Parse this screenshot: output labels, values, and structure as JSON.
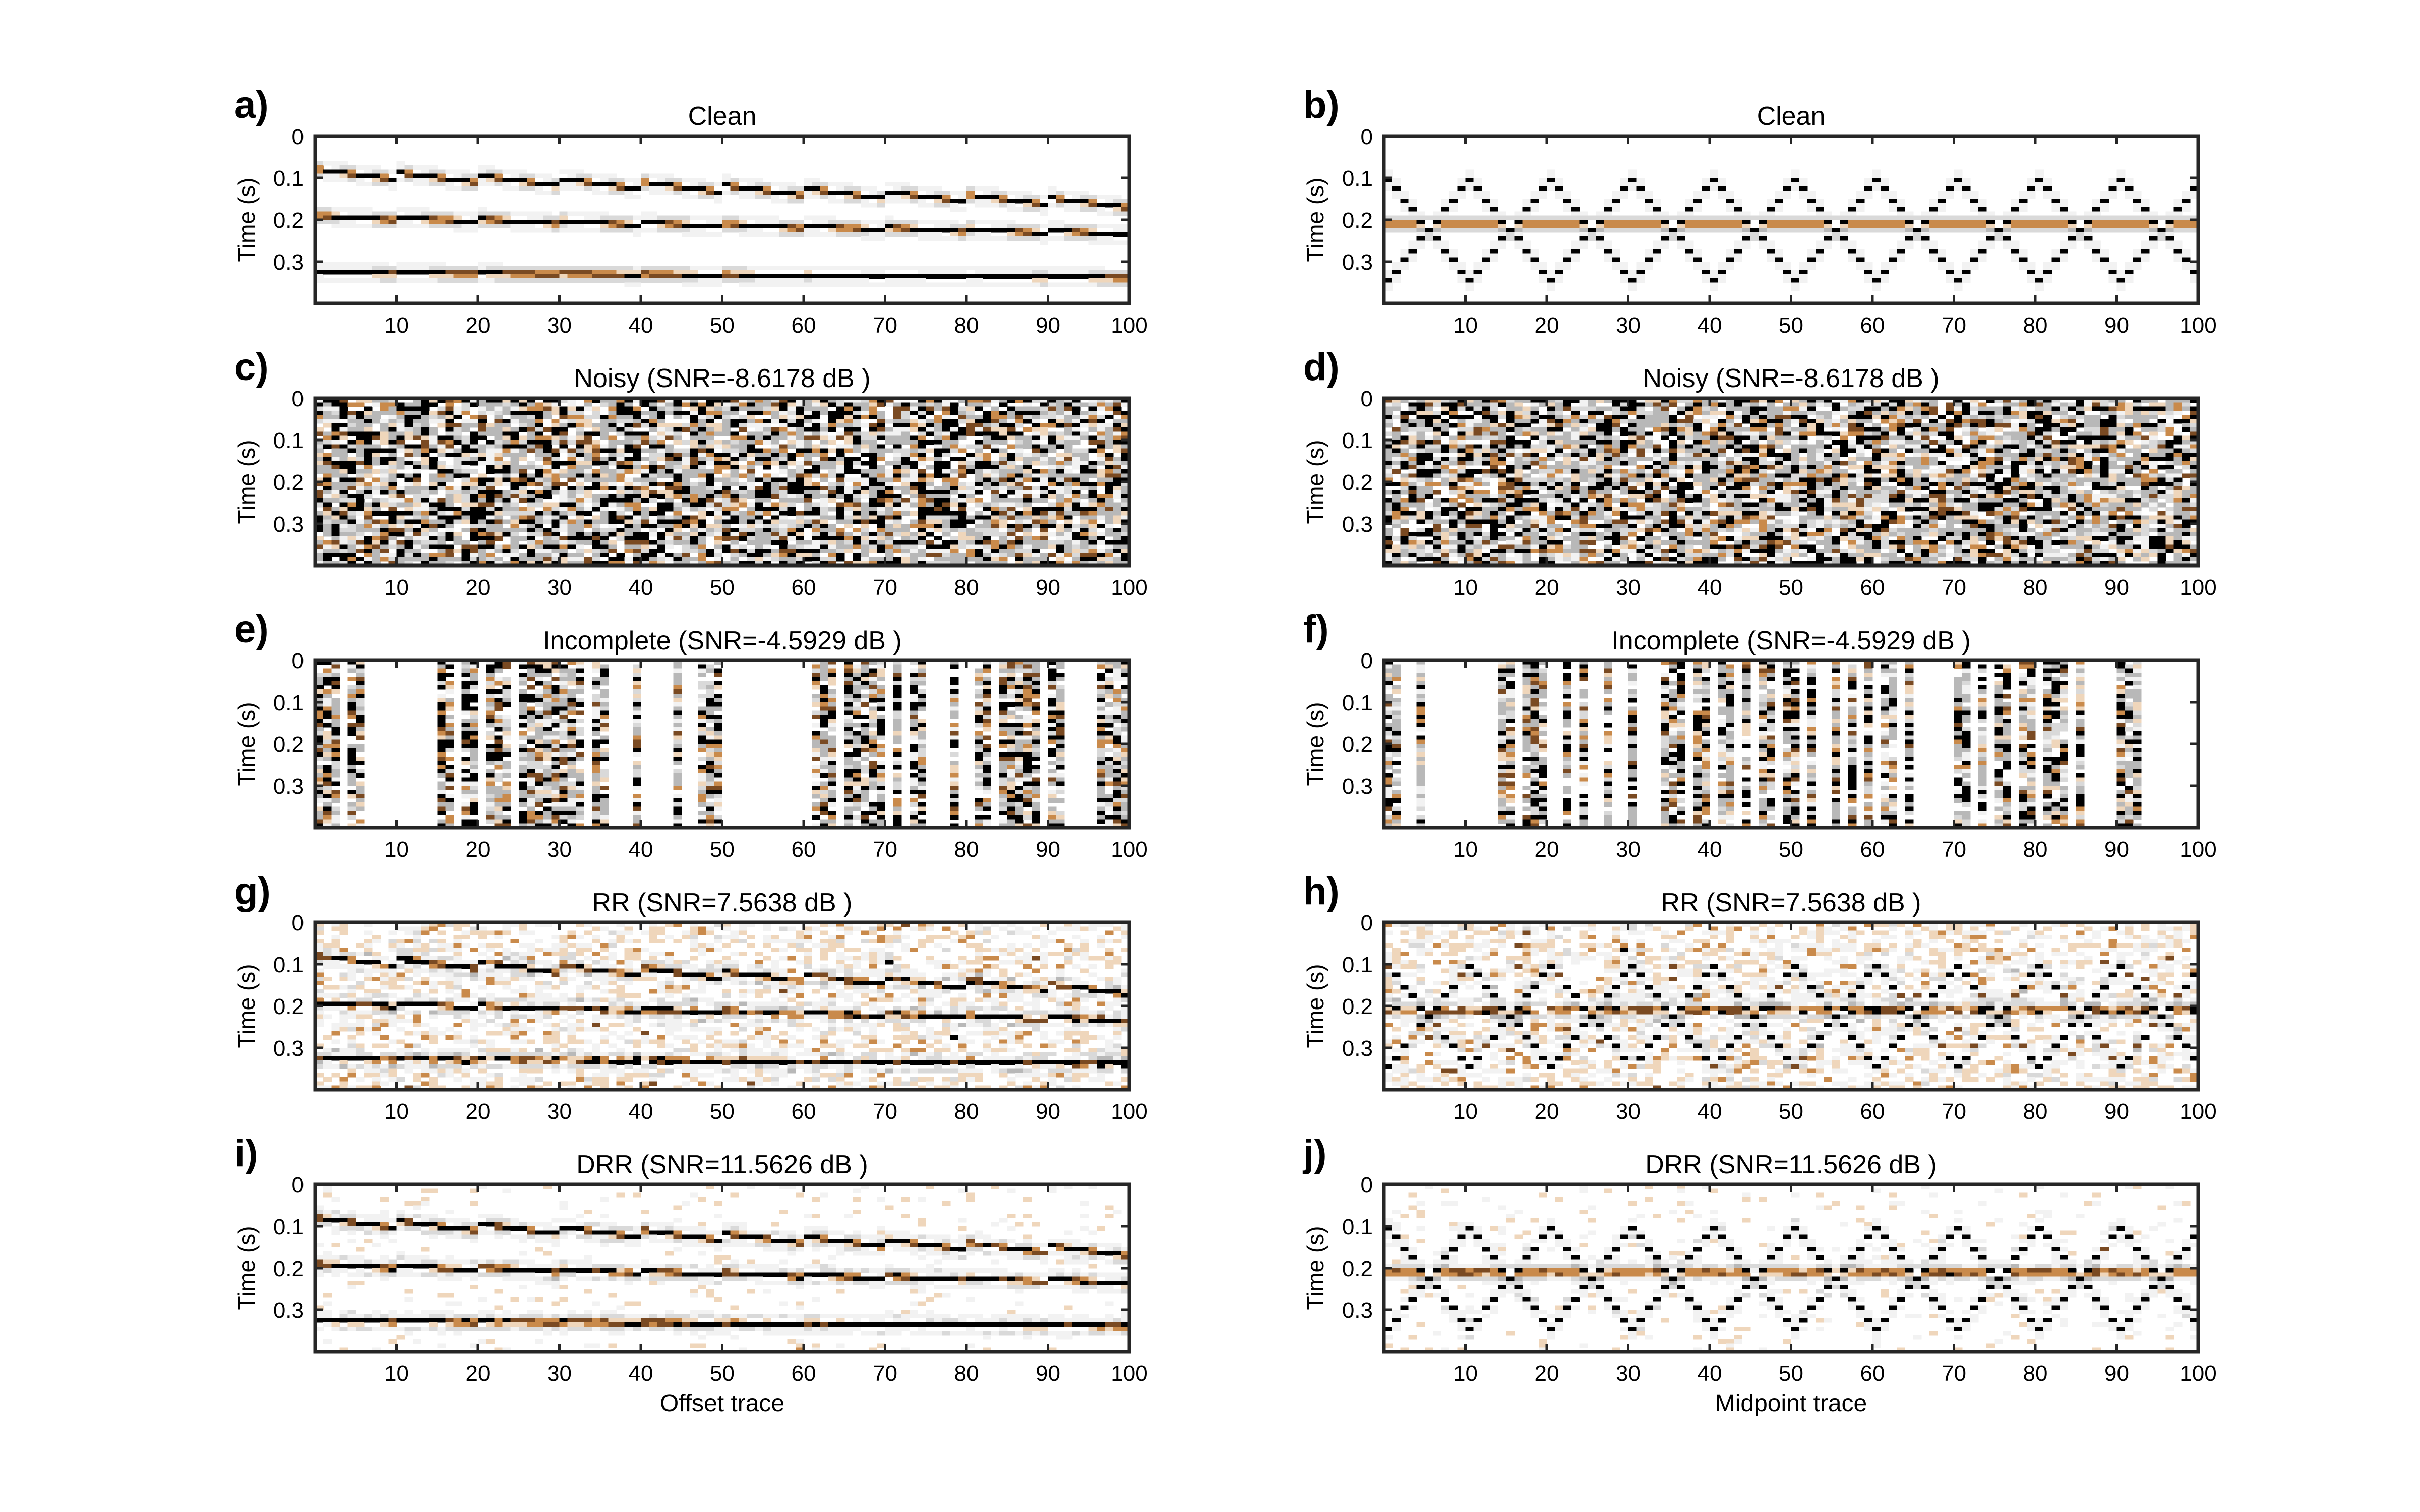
{
  "chart_data": [
    {
      "id": "a",
      "type": "heatmap",
      "panel_letter": "a)",
      "title": "Clean",
      "ylabel": "Time (s)",
      "xlabel": "",
      "kind": "clean",
      "geom": "offset",
      "x_ticks": [
        10,
        20,
        30,
        40,
        50,
        60,
        70,
        80,
        90,
        100
      ],
      "y_ticks": [
        "0",
        "0.1",
        "0.2",
        "0.3"
      ],
      "xlim": [
        0,
        100
      ],
      "ylim": [
        0,
        0.4
      ]
    },
    {
      "id": "b",
      "type": "heatmap",
      "panel_letter": "b)",
      "title": "Clean",
      "ylabel": "Time (s)",
      "xlabel": "",
      "kind": "clean",
      "geom": "midpoint",
      "x_ticks": [
        10,
        20,
        30,
        40,
        50,
        60,
        70,
        80,
        90,
        100
      ],
      "y_ticks": [
        "0",
        "0.1",
        "0.2",
        "0.3"
      ],
      "xlim": [
        0,
        100
      ],
      "ylim": [
        0,
        0.4
      ]
    },
    {
      "id": "c",
      "type": "heatmap",
      "panel_letter": "c)",
      "title": "Noisy (SNR=-8.6178 dB )",
      "ylabel": "Time (s)",
      "xlabel": "",
      "kind": "noisy",
      "geom": "offset",
      "x_ticks": [
        10,
        20,
        30,
        40,
        50,
        60,
        70,
        80,
        90,
        100
      ],
      "y_ticks": [
        "0",
        "0.1",
        "0.2",
        "0.3"
      ],
      "xlim": [
        0,
        100
      ],
      "ylim": [
        0,
        0.4
      ]
    },
    {
      "id": "d",
      "type": "heatmap",
      "panel_letter": "d)",
      "title": "Noisy (SNR=-8.6178 dB )",
      "ylabel": "Time (s)",
      "xlabel": "",
      "kind": "noisy",
      "geom": "midpoint",
      "x_ticks": [
        10,
        20,
        30,
        40,
        50,
        60,
        70,
        80,
        90,
        100
      ],
      "y_ticks": [
        "0",
        "0.1",
        "0.2",
        "0.3"
      ],
      "xlim": [
        0,
        100
      ],
      "ylim": [
        0,
        0.4
      ]
    },
    {
      "id": "e",
      "type": "heatmap",
      "panel_letter": "e)",
      "title": "Incomplete (SNR=-4.5929 dB )",
      "ylabel": "Time (s)",
      "xlabel": "",
      "kind": "incomplete",
      "geom": "offset",
      "x_ticks": [
        10,
        20,
        30,
        40,
        50,
        60,
        70,
        80,
        90,
        100
      ],
      "y_ticks": [
        "0",
        "0.1",
        "0.2",
        "0.3"
      ],
      "xlim": [
        0,
        100
      ],
      "ylim": [
        0,
        0.4
      ],
      "present_traces": [
        1,
        2,
        3,
        5,
        6,
        16,
        17,
        19,
        20,
        22,
        23,
        24,
        26,
        27,
        28,
        29,
        30,
        31,
        32,
        33,
        35,
        36,
        40,
        45,
        48,
        49,
        50,
        62,
        63,
        64,
        66,
        67,
        68,
        69,
        70,
        72,
        74,
        75,
        79,
        82,
        83,
        85,
        86,
        87,
        88,
        89,
        91,
        92,
        97,
        98,
        99,
        100
      ]
    },
    {
      "id": "f",
      "type": "heatmap",
      "panel_letter": "f)",
      "title": "Incomplete (SNR=-4.5929 dB )",
      "ylabel": "Time (s)",
      "xlabel": "",
      "kind": "incomplete",
      "geom": "midpoint",
      "x_ticks": [
        10,
        20,
        30,
        40,
        50,
        60,
        70,
        80,
        90,
        100
      ],
      "y_ticks": [
        "0",
        "0.1",
        "0.2",
        "0.3"
      ],
      "xlim": [
        0,
        100
      ],
      "ylim": [
        0,
        0.4
      ],
      "present_traces": [
        1,
        2,
        5,
        15,
        16,
        18,
        19,
        20,
        23,
        25,
        28,
        31,
        35,
        36,
        37,
        39,
        40,
        42,
        43,
        45,
        47,
        48,
        50,
        51,
        53,
        56,
        58,
        60,
        62,
        63,
        65,
        71,
        72,
        74,
        76,
        77,
        79,
        80,
        82,
        83,
        84,
        86,
        91,
        92,
        93
      ]
    },
    {
      "id": "g",
      "type": "heatmap",
      "panel_letter": "g)",
      "title": "RR (SNR=7.5638 dB )",
      "ylabel": "Time (s)",
      "xlabel": "",
      "kind": "rr",
      "geom": "offset",
      "x_ticks": [
        10,
        20,
        30,
        40,
        50,
        60,
        70,
        80,
        90,
        100
      ],
      "y_ticks": [
        "0",
        "0.1",
        "0.2",
        "0.3"
      ],
      "xlim": [
        0,
        100
      ],
      "ylim": [
        0,
        0.4
      ]
    },
    {
      "id": "h",
      "type": "heatmap",
      "panel_letter": "h)",
      "title": "RR (SNR=7.5638 dB )",
      "ylabel": "Time (s)",
      "xlabel": "",
      "kind": "rr",
      "geom": "midpoint",
      "x_ticks": [
        10,
        20,
        30,
        40,
        50,
        60,
        70,
        80,
        90,
        100
      ],
      "y_ticks": [
        "0",
        "0.1",
        "0.2",
        "0.3"
      ],
      "xlim": [
        0,
        100
      ],
      "ylim": [
        0,
        0.4
      ]
    },
    {
      "id": "i",
      "type": "heatmap",
      "panel_letter": "i)",
      "title": "DRR (SNR=11.5626 dB )",
      "ylabel": "Time (s)",
      "xlabel": "Offset trace",
      "kind": "drr",
      "geom": "offset",
      "x_ticks": [
        10,
        20,
        30,
        40,
        50,
        60,
        70,
        80,
        90,
        100
      ],
      "y_ticks": [
        "0",
        "0.1",
        "0.2",
        "0.3"
      ],
      "xlim": [
        0,
        100
      ],
      "ylim": [
        0,
        0.4
      ]
    },
    {
      "id": "j",
      "type": "heatmap",
      "panel_letter": "j)",
      "title": "DRR (SNR=11.5626 dB )",
      "ylabel": "Time (s)",
      "xlabel": "Midpoint trace",
      "kind": "drr",
      "geom": "midpoint",
      "x_ticks": [
        10,
        20,
        30,
        40,
        50,
        60,
        70,
        80,
        90,
        100
      ],
      "y_ticks": [
        "0",
        "0.1",
        "0.2",
        "0.3"
      ],
      "xlim": [
        0,
        100
      ],
      "ylim": [
        0,
        0.4
      ]
    }
  ],
  "colormap": {
    "dark": "#000000",
    "mid": "#b5651d",
    "light": "#e8c9a8",
    "background": "#ffffff"
  }
}
